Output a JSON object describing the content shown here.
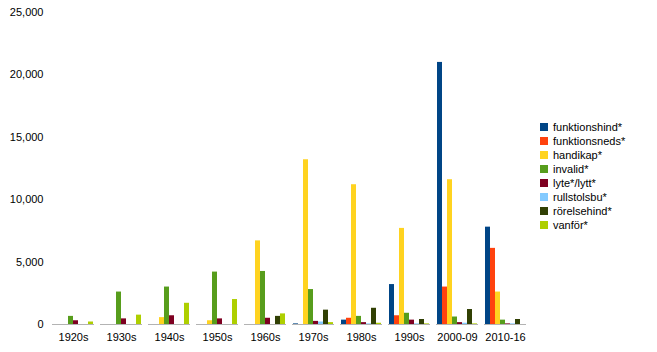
{
  "chart_data": {
    "type": "bar",
    "categories": [
      "1920s",
      "1930s",
      "1940s",
      "1950s",
      "1960s",
      "1970s",
      "1980s",
      "1990s",
      "2000-09",
      "2010-16"
    ],
    "series": [
      {
        "name": "funktionshind*",
        "color": "#004586",
        "values": [
          0,
          0,
          0,
          0,
          0,
          50,
          350,
          3200,
          21000,
          7800
        ]
      },
      {
        "name": "funktionsneds*",
        "color": "#ff420e",
        "values": [
          0,
          0,
          0,
          0,
          0,
          0,
          500,
          700,
          3000,
          6100
        ]
      },
      {
        "name": "handikap*",
        "color": "#ffd320",
        "values": [
          0,
          0,
          550,
          300,
          6700,
          13200,
          11200,
          7700,
          11600,
          2600
        ]
      },
      {
        "name": "invalid*",
        "color": "#579d1c",
        "values": [
          650,
          2600,
          3000,
          4200,
          4250,
          2800,
          650,
          900,
          600,
          350
        ]
      },
      {
        "name": "lyte*/lytt*",
        "color": "#7e0021",
        "values": [
          300,
          450,
          700,
          450,
          500,
          250,
          150,
          350,
          150,
          50
        ]
      },
      {
        "name": "rullstolsbu*",
        "color": "#83caff",
        "values": [
          0,
          0,
          0,
          0,
          0,
          200,
          50,
          50,
          100,
          50
        ]
      },
      {
        "name": "rörelsehind*",
        "color": "#314004",
        "values": [
          0,
          0,
          0,
          0,
          650,
          1150,
          1300,
          400,
          1200,
          400
        ]
      },
      {
        "name": "vanför*",
        "color": "#aecf00",
        "values": [
          200,
          750,
          1700,
          2000,
          850,
          150,
          100,
          50,
          50,
          0
        ]
      }
    ],
    "ylim": [
      0,
      25000
    ],
    "yticks": [
      0,
      5000,
      10000,
      15000,
      20000,
      25000
    ],
    "grid": false,
    "legend": "right"
  }
}
